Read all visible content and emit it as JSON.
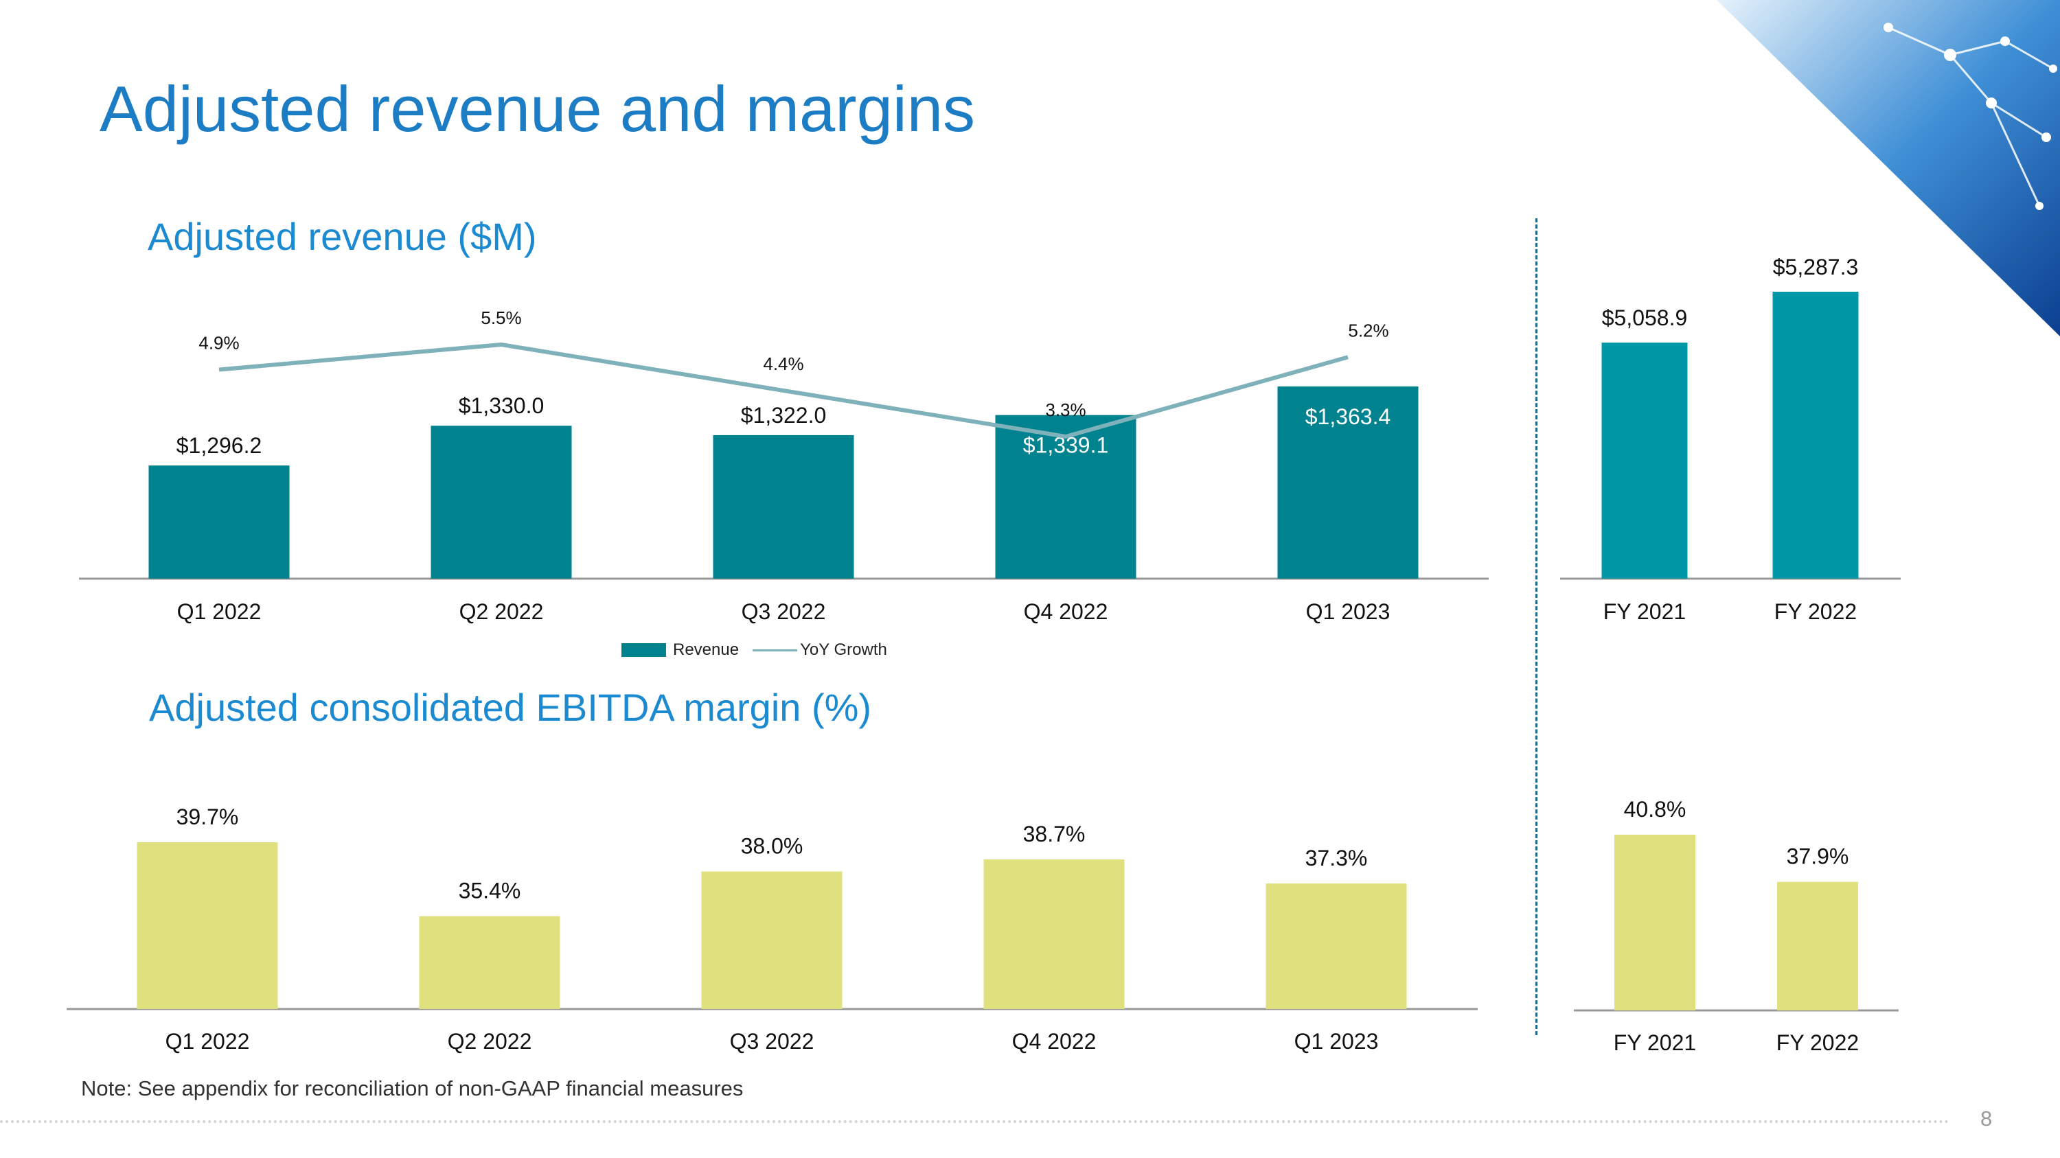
{
  "page": {
    "title": "Adjusted revenue and margins",
    "note": "Note: See appendix for reconciliation of non-GAAP financial measures",
    "page_number": "8"
  },
  "colors": {
    "title": "#1C7CC4",
    "revenue_bar": "#00838F",
    "fy_revenue_bar": "#0097A7",
    "growth_line": "#7FB1BA",
    "ebitda_bar": "#DFE07E"
  },
  "legend": {
    "revenue": "Revenue",
    "growth": "YoY Growth"
  },
  "chart_data": [
    {
      "type": "bar",
      "title": "Adjusted revenue ($M)",
      "categories": [
        "Q1 2022",
        "Q2 2022",
        "Q3 2022",
        "Q4 2022",
        "Q1 2023"
      ],
      "series": [
        {
          "name": "Revenue",
          "values": [
            1296.2,
            1330.0,
            1322.0,
            1339.1,
            1363.4
          ],
          "labels": [
            "$1,296.2",
            "$1,330.0",
            "$1,322.0",
            "$1,339.1",
            "$1,363.4"
          ]
        },
        {
          "name": "YoY Growth",
          "type": "line",
          "values": [
            4.9,
            5.5,
            4.4,
            3.3,
            5.2
          ],
          "labels": [
            "4.9%",
            "5.5%",
            "4.4%",
            "3.3%",
            "5.2%"
          ]
        }
      ],
      "legend": "bottom-center"
    },
    {
      "type": "bar",
      "categories": [
        "FY 2021",
        "FY 2022"
      ],
      "values": [
        5058.9,
        5287.3
      ],
      "labels": [
        "$5,058.9",
        "$5,287.3"
      ]
    },
    {
      "type": "bar",
      "title": "Adjusted consolidated EBITDA margin (%)",
      "categories": [
        "Q1 2022",
        "Q2 2022",
        "Q3 2022",
        "Q4 2022",
        "Q1 2023"
      ],
      "values": [
        39.7,
        35.4,
        38.0,
        38.7,
        37.3
      ],
      "labels": [
        "39.7%",
        "35.4%",
        "38.0%",
        "38.7%",
        "37.3%"
      ]
    },
    {
      "type": "bar",
      "categories": [
        "FY 2021",
        "FY 2022"
      ],
      "values": [
        40.8,
        37.9
      ],
      "labels": [
        "40.8%",
        "37.9%"
      ]
    }
  ]
}
